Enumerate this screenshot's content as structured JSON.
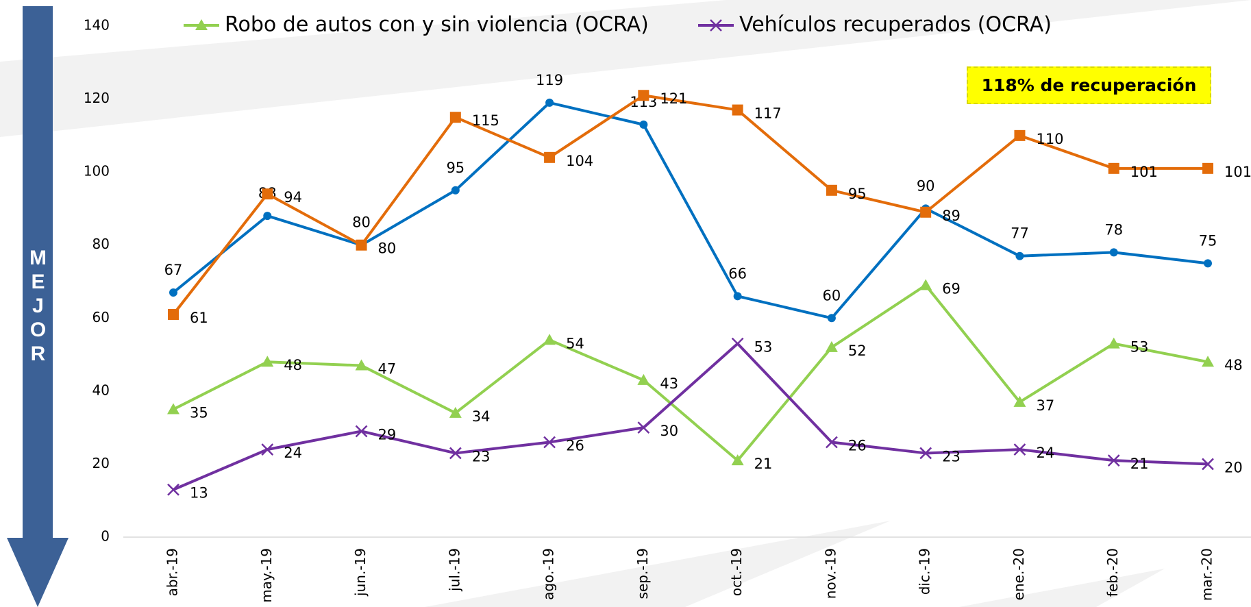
{
  "chart_data": {
    "type": "line",
    "categories": [
      "abr.-19",
      "may.-19",
      "jun.-19",
      "jul.-19",
      "ago.-19",
      "sep.-19",
      "oct.-19",
      "nov.-19",
      "dic.-19",
      "ene.-20",
      "feb.-20",
      "mar.-20"
    ],
    "series": [
      {
        "color": "#0070c0",
        "marker": "circle",
        "values": [
          67,
          88,
          80,
          95,
          119,
          113,
          66,
          60,
          90,
          77,
          78,
          75
        ]
      },
      {
        "color": "#e36c0a",
        "marker": "square",
        "values": [
          61,
          94,
          80,
          115,
          104,
          121,
          117,
          95,
          89,
          110,
          101,
          101
        ]
      },
      {
        "name": "Robo de autos con y sin violencia (OCRA)",
        "color": "#92d050",
        "marker": "triangle",
        "values": [
          35,
          48,
          47,
          34,
          54,
          43,
          21,
          52,
          69,
          37,
          53,
          48
        ]
      },
      {
        "name": "Vehículos recuperados (OCRA)",
        "color": "#7030a0",
        "marker": "x",
        "values": [
          13,
          24,
          29,
          23,
          26,
          30,
          53,
          26,
          23,
          24,
          21,
          20
        ]
      }
    ],
    "ylim": [
      0,
      140
    ],
    "yticks": [
      0,
      20,
      40,
      60,
      80,
      100,
      120,
      140
    ],
    "annotation": "118% de recuperación",
    "side_label": "MEJOR"
  }
}
